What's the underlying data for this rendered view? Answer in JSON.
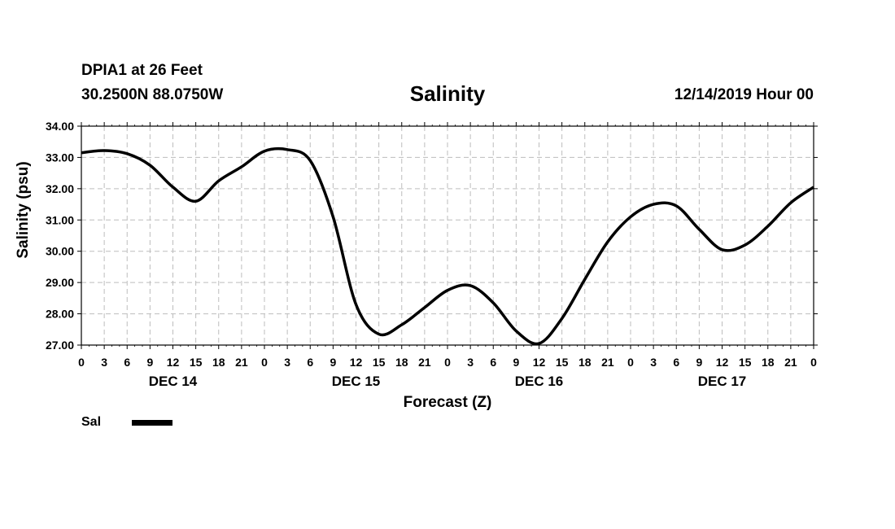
{
  "header": {
    "station": "DPIA1 at 26 Feet",
    "coords": "30.2500N 88.0750W",
    "title": "Salinity",
    "datetime": "12/14/2019 Hour 00"
  },
  "chart_data": {
    "type": "line",
    "title": "Salinity",
    "xlabel": "Forecast (Z)",
    "ylabel": "Salinity (psu)",
    "ylim": [
      27,
      34
    ],
    "yticks": [
      "27.00",
      "28.00",
      "29.00",
      "30.00",
      "31.00",
      "32.00",
      "33.00",
      "34.00"
    ],
    "xlim_hours": [
      0,
      96
    ],
    "xtick_labels": [
      "0",
      "3",
      "6",
      "9",
      "12",
      "15",
      "18",
      "21",
      "0",
      "3",
      "6",
      "9",
      "12",
      "15",
      "18",
      "21",
      "0",
      "3",
      "6",
      "9",
      "12",
      "15",
      "18",
      "21",
      "0",
      "3",
      "6",
      "9",
      "12",
      "15",
      "18",
      "21",
      "0"
    ],
    "day_labels": [
      "DEC 14",
      "DEC 15",
      "DEC 16",
      "DEC 17"
    ],
    "grid": true,
    "legend_position": "bottom-left",
    "series": [
      {
        "name": "Sal",
        "color": "#000000",
        "x_hours": [
          0,
          3,
          6,
          9,
          12,
          15,
          18,
          21,
          24,
          27,
          30,
          33,
          36,
          39,
          42,
          45,
          48,
          51,
          54,
          57,
          60,
          63,
          66,
          69,
          72,
          75,
          78,
          81,
          84,
          87,
          90,
          93,
          96
        ],
        "values": [
          33.15,
          33.22,
          33.12,
          32.75,
          32.05,
          31.6,
          32.25,
          32.7,
          33.2,
          33.25,
          32.9,
          31.1,
          28.3,
          27.35,
          27.65,
          28.2,
          28.75,
          28.9,
          28.35,
          27.45,
          27.05,
          27.85,
          29.1,
          30.3,
          31.1,
          31.5,
          31.45,
          30.7,
          30.05,
          30.2,
          30.8,
          31.55,
          32.05
        ]
      }
    ]
  }
}
